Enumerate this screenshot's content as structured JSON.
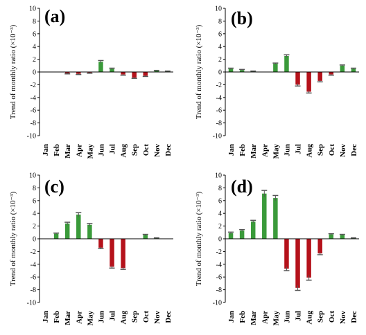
{
  "chart_data": [
    {
      "type": "bar",
      "panel_label": "(a)",
      "ylabel_main": "Trend of monthly ratio ",
      "ylabel_unit": "(×10⁻³)",
      "categories": [
        "Jan",
        "Feb",
        "Mar",
        "Apr",
        "May",
        "Jun",
        "Jul",
        "Aug",
        "Sep",
        "Oct",
        "Nov",
        "Dec"
      ],
      "values": [
        0,
        0,
        -0.2,
        -0.3,
        -0.1,
        1.6,
        0.5,
        -0.4,
        -0.9,
        -0.6,
        0.2,
        0.1
      ],
      "errors": [
        0,
        0,
        0.1,
        0.1,
        0.1,
        0.2,
        0.1,
        0.1,
        0.1,
        0.1,
        0.05,
        0.05
      ],
      "ylim": [
        -10,
        10
      ],
      "yticks": [
        -10,
        -8,
        -6,
        -4,
        -2,
        0,
        2,
        4,
        6,
        8,
        10
      ]
    },
    {
      "type": "bar",
      "panel_label": "(b)",
      "ylabel_main": "Trend of monthly ratio ",
      "ylabel_unit": "(×10⁻³)",
      "categories": [
        "Jan",
        "Feb",
        "Mar",
        "Apr",
        "May",
        "Jun",
        "Jul",
        "Aug",
        "Sep",
        "Oct",
        "Nov",
        "Dec"
      ],
      "values": [
        0.5,
        0.3,
        0.1,
        0,
        1.3,
        2.5,
        -2.0,
        -3.1,
        -1.4,
        -0.4,
        1.0,
        0.5
      ],
      "errors": [
        0.1,
        0.1,
        0.05,
        0,
        0.1,
        0.2,
        0.2,
        0.2,
        0.15,
        0.1,
        0.1,
        0.1
      ],
      "ylim": [
        -10,
        10
      ],
      "yticks": [
        -10,
        -8,
        -6,
        -4,
        -2,
        0,
        2,
        4,
        6,
        8,
        10
      ]
    },
    {
      "type": "bar",
      "panel_label": "(c)",
      "ylabel_main": "Trend of monthly ratio ",
      "ylabel_unit": "(×10⁻³)",
      "categories": [
        "Jan",
        "Feb",
        "Mar",
        "Apr",
        "May",
        "Jun",
        "Jul",
        "Aug",
        "Sep",
        "Oct",
        "Nov",
        "Dec"
      ],
      "values": [
        0,
        0.8,
        2.4,
        3.8,
        2.2,
        -1.4,
        -4.4,
        -4.6,
        0,
        0.6,
        0.1,
        0
      ],
      "errors": [
        0,
        0.1,
        0.2,
        0.3,
        0.2,
        0.15,
        0.2,
        0.2,
        0,
        0.1,
        0.05,
        0
      ],
      "ylim": [
        -10,
        10
      ],
      "yticks": [
        -10,
        -8,
        -6,
        -4,
        -2,
        0,
        2,
        4,
        6,
        8,
        10
      ]
    },
    {
      "type": "bar",
      "panel_label": "(d)",
      "ylabel_main": "Trend of monthly ratio ",
      "ylabel_unit": "(×10⁻³)",
      "categories": [
        "Jan",
        "Feb",
        "Mar",
        "Apr",
        "May",
        "Jun",
        "Jul",
        "Aug",
        "Sep",
        "Oct",
        "Nov",
        "Dec"
      ],
      "values": [
        0.9,
        1.3,
        2.7,
        7.1,
        6.4,
        -4.7,
        -7.7,
        -6.1,
        -2.3,
        0.7,
        0.6,
        0.1
      ],
      "errors": [
        0.15,
        0.15,
        0.2,
        0.5,
        0.4,
        0.3,
        0.4,
        0.4,
        0.2,
        0.1,
        0.1,
        0.05
      ],
      "ylim": [
        -10,
        10
      ],
      "yticks": [
        -10,
        -8,
        -6,
        -4,
        -2,
        0,
        2,
        4,
        6,
        8,
        10
      ]
    }
  ],
  "colors": {
    "positive": "#3a9a3a",
    "negative": "#b5121b",
    "axis": "#000000"
  }
}
